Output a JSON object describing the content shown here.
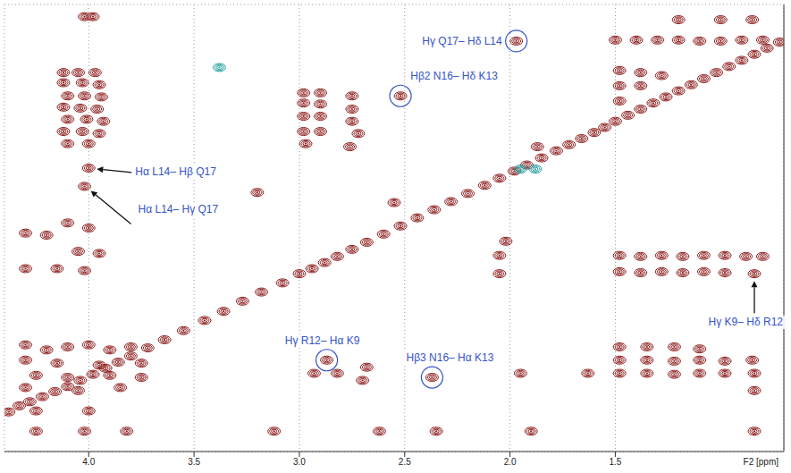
{
  "chart_data": {
    "type": "scatter",
    "x_label": "F2 [ppm]",
    "xlim": [
      4.4,
      0.7
    ],
    "xticks": [
      {
        "value": 4,
        "label": "4.0"
      },
      3.5,
      {
        "value": 3,
        "label": "3.0"
      },
      2.5,
      {
        "value": 2,
        "label": "2.0"
      },
      1.5
    ],
    "ylim": [
      4.75,
      0.35
    ],
    "yticks": [
      1,
      2,
      3,
      4
    ],
    "tick_labels": "x",
    "grid": true,
    "series": [
      {
        "color": "#8b1a1a",
        "marker": "contour",
        "x": [
          4.02,
          3.98,
          4.12,
          4.05,
          3.97,
          4.12,
          4.03,
          3.95,
          4.1,
          4.02,
          3.94,
          4.12,
          4.04,
          3.96,
          4.1,
          4.01,
          3.93,
          4.12,
          4.03,
          3.95,
          4.1,
          4.0,
          4.0,
          4.02,
          4.1,
          4.0,
          4.2,
          4.05,
          3.95,
          4.15,
          4.02,
          4.3,
          4.3,
          4.3,
          4.2,
          4.1,
          4.0,
          3.9,
          3.8,
          4.3,
          4.15,
          3.95,
          3.75,
          4.25,
          4.1,
          3.9,
          3.75,
          4.3,
          4.05,
          3.85,
          4.25,
          4.02,
          3.82,
          3.12,
          2.62,
          2.35,
          1.9,
          0.84,
          4.25,
          4.0,
          2.98,
          2.9,
          2.98,
          2.9,
          2.98,
          2.9,
          2.98,
          2.9,
          2.97,
          2.75,
          2.75,
          2.75,
          2.72,
          2.76,
          2.52,
          1.97,
          1.5,
          1.4,
          1.3,
          1.2,
          1.1,
          1.0,
          0.9,
          0.8,
          1.2,
          1.0,
          0.85,
          1.87,
          1.48,
          1.38,
          1.28,
          1.18,
          1.08,
          0.98,
          0.88,
          0.8,
          1.48,
          1.38,
          1.28,
          1.18,
          1.08,
          0.98,
          0.84,
          2.05,
          2.05,
          1.48,
          1.35,
          1.22,
          1.1,
          1.48,
          1.35,
          1.22,
          1.1,
          0.98,
          0.85,
          1.48,
          1.35,
          1.22,
          1.1,
          0.98,
          0.84,
          0.84,
          1.95,
          1.63,
          2.37,
          2.68,
          2.7,
          2.87,
          2.93,
          2.82,
          1.48,
          1.38,
          1.28,
          1.48,
          1.38,
          1.48,
          2.02,
          3.2,
          2.55,
          4.38,
          4.33,
          4.28,
          4.22,
          4.16,
          4.1,
          4.04,
          3.98,
          3.92,
          3.86,
          3.8,
          3.72,
          3.64,
          3.55,
          3.45,
          3.36,
          3.27,
          3.18,
          3.08,
          3.0,
          2.94,
          2.88,
          2.82,
          2.75,
          2.68,
          2.6,
          2.52,
          2.44,
          2.36,
          2.28,
          2.2,
          2.12,
          2.05,
          1.98,
          1.92,
          1.85,
          1.78,
          1.72,
          1.66,
          1.6,
          1.55,
          1.5,
          1.44,
          1.38,
          1.32,
          1.26,
          1.2,
          1.14,
          1.08,
          1.02,
          0.96,
          0.9,
          0.84,
          0.78,
          0.72
        ],
        "y": [
          0.47,
          0.47,
          1.02,
          1.02,
          1.02,
          1.12,
          1.12,
          1.14,
          1.25,
          1.25,
          1.26,
          1.36,
          1.37,
          1.38,
          1.48,
          1.48,
          1.5,
          1.6,
          1.6,
          1.62,
          1.72,
          1.72,
          1.96,
          2.14,
          2.5,
          2.55,
          2.62,
          2.78,
          2.8,
          2.95,
          2.97,
          2.6,
          2.95,
          3.7,
          3.75,
          3.72,
          3.7,
          3.75,
          3.72,
          3.85,
          3.88,
          3.9,
          3.88,
          4.0,
          4.02,
          4.0,
          4.02,
          4.12,
          4.15,
          4.12,
          4.55,
          4.55,
          4.55,
          4.55,
          4.55,
          4.55,
          4.55,
          4.55,
          4.35,
          4.35,
          1.22,
          1.22,
          1.32,
          1.33,
          1.45,
          1.45,
          1.6,
          1.6,
          1.72,
          1.25,
          1.38,
          1.5,
          1.62,
          1.75,
          1.25,
          0.71,
          0.7,
          0.7,
          0.7,
          0.7,
          0.71,
          0.71,
          0.7,
          0.7,
          0.5,
          0.5,
          0.5,
          1.75,
          2.82,
          2.83,
          2.82,
          2.83,
          2.82,
          2.82,
          2.83,
          2.83,
          2.98,
          2.99,
          2.98,
          2.99,
          2.98,
          2.99,
          3.0,
          2.82,
          3.0,
          3.72,
          3.72,
          3.72,
          3.74,
          3.85,
          3.85,
          3.86,
          3.85,
          3.86,
          3.85,
          3.98,
          3.98,
          3.99,
          3.98,
          3.98,
          3.98,
          4.15,
          3.98,
          3.98,
          4.02,
          3.92,
          4.05,
          3.85,
          3.98,
          3.98,
          1.0,
          1.02,
          1.05,
          1.15,
          1.15,
          1.3,
          2.68,
          2.2,
          2.3,
          4.36,
          4.3,
          4.26,
          4.21,
          4.16,
          4.11,
          4.05,
          3.99,
          3.93,
          3.87,
          3.81,
          3.73,
          3.65,
          3.56,
          3.46,
          3.37,
          3.27,
          3.18,
          3.09,
          3.0,
          2.95,
          2.89,
          2.83,
          2.76,
          2.69,
          2.61,
          2.53,
          2.45,
          2.37,
          2.29,
          2.21,
          2.13,
          2.06,
          1.99,
          1.93,
          1.86,
          1.79,
          1.73,
          1.67,
          1.61,
          1.56,
          1.5,
          1.44,
          1.38,
          1.32,
          1.26,
          1.2,
          1.14,
          1.08,
          1.02,
          0.96,
          0.9,
          0.84,
          0.78,
          0.72
        ]
      },
      {
        "color": "#1f9e9e",
        "marker": "contour",
        "x": [
          3.38,
          1.88,
          1.95
        ],
        "y": [
          0.97,
          1.97,
          1.97
        ]
      }
    ],
    "annotations": [
      {
        "text": "Hγ Q17– Hδ L14",
        "x": 1.97,
        "y": 0.71,
        "marker": "circle"
      },
      {
        "text": "Hβ2 N16– Hδ K13",
        "x": 2.52,
        "y": 1.25,
        "marker": "circle"
      },
      {
        "text": "Hα L14– Hβ Q17",
        "x": 4.0,
        "y": 1.96,
        "marker": "arrow"
      },
      {
        "text": "Hα L14– Hγ Q17",
        "x": 4.02,
        "y": 2.14,
        "marker": "arrow"
      },
      {
        "text": "Hγ R12– Hα K9",
        "x": 2.87,
        "y": 3.85,
        "marker": "circle"
      },
      {
        "text": "Hβ3 N16– Hα K13",
        "x": 2.37,
        "y": 4.02,
        "marker": "circle"
      },
      {
        "text": "Hγ K9– Hδ R12",
        "x": 0.84,
        "y": 3.0,
        "marker": "arrow"
      }
    ]
  }
}
